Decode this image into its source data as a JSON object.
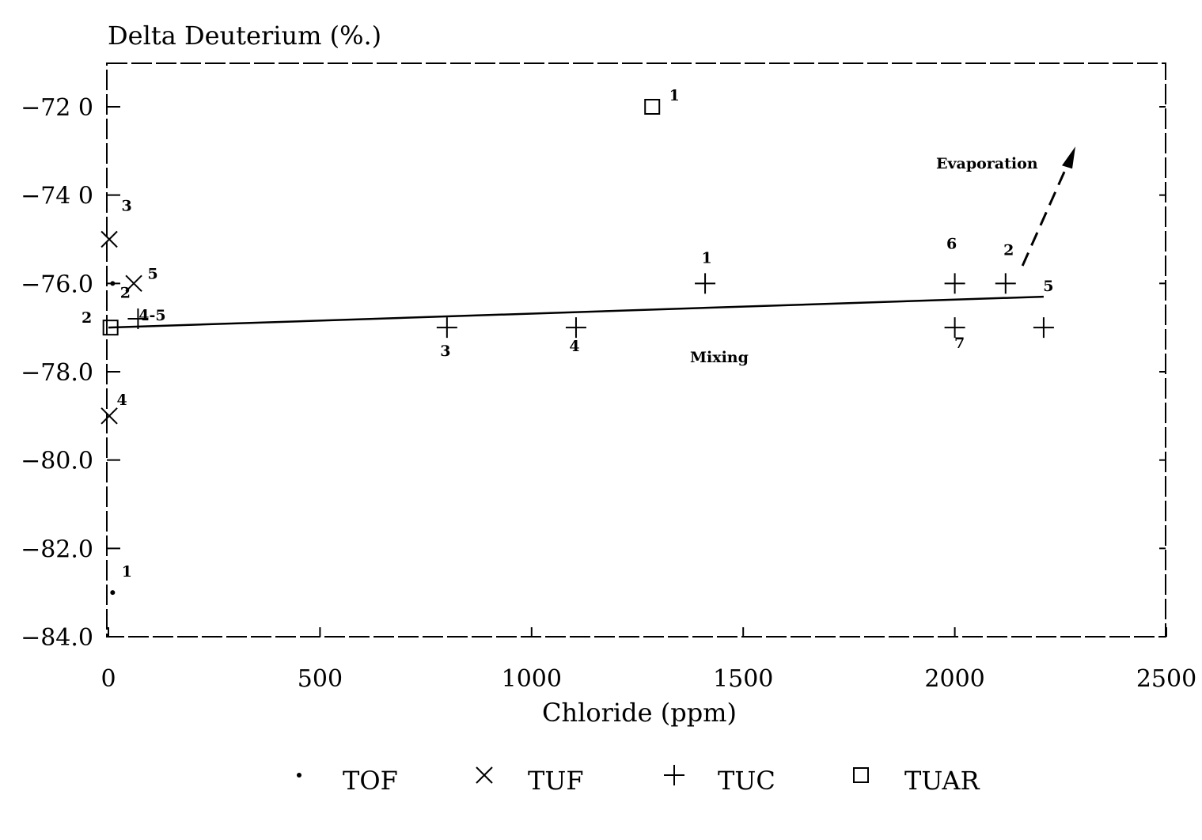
{
  "chart_data": {
    "type": "scatter",
    "title": "",
    "xlabel": "Chloride (ppm)",
    "ylabel": "Delta Deuterium (%.)",
    "xlim": [
      0,
      2500
    ],
    "ylim": [
      -84,
      -71
    ],
    "x_ticks": [
      0,
      500,
      1000,
      1500,
      2000,
      2500
    ],
    "x_tick_labels": [
      "0",
      "500",
      "1000",
      "1500",
      "2000",
      "2500"
    ],
    "y_ticks": [
      -72,
      -74,
      -76,
      -78,
      -80,
      -82,
      -84
    ],
    "y_tick_labels": [
      "−72 0",
      "−74 0",
      "−76.0",
      "−78.0",
      "−80.0",
      "−82.0",
      "−84.0"
    ],
    "grid": false,
    "legend_position": "bottom",
    "series": [
      {
        "name": "TOF",
        "marker": "dot",
        "points": [
          {
            "x": 10,
            "y": -83.0,
            "label": "1"
          },
          {
            "x": 10,
            "y": -76.0,
            "label": "2"
          }
        ]
      },
      {
        "name": "TUF",
        "marker": "x",
        "points": [
          {
            "x": 2,
            "y": -79.0,
            "label": "4"
          },
          {
            "x": 60,
            "y": -76.0,
            "label": "5"
          },
          {
            "x": 2,
            "y": -75.0,
            "label": "3"
          }
        ]
      },
      {
        "name": "TUC",
        "marker": "plus",
        "points": [
          {
            "x": 1410,
            "y": -76.0,
            "label": "1"
          },
          {
            "x": 2000,
            "y": -76.0,
            "label": "6"
          },
          {
            "x": 2120,
            "y": -76.0,
            "label": "2"
          },
          {
            "x": 800,
            "y": -77.0,
            "label": "3"
          },
          {
            "x": 1105,
            "y": -77.0,
            "label": "4"
          },
          {
            "x": 2000,
            "y": -77.0,
            "label": "7"
          },
          {
            "x": 2210,
            "y": -77.0,
            "label": "5"
          },
          {
            "x": 70,
            "y": -76.8,
            "label": "4-5"
          }
        ]
      },
      {
        "name": "TUAR",
        "marker": "square",
        "points": [
          {
            "x": 1285,
            "y": -72.0,
            "label": "1"
          },
          {
            "x": 5,
            "y": -77.0,
            "label": "2"
          }
        ]
      }
    ],
    "trend_line": {
      "label": "Mixing",
      "x": [
        0,
        2210
      ],
      "y": [
        -77.0,
        -76.3
      ]
    },
    "arrow": {
      "label": "Evaporation",
      "from": {
        "x": 2160,
        "y": -75.6
      },
      "to": {
        "x": 2285,
        "y": -72.9
      }
    }
  }
}
